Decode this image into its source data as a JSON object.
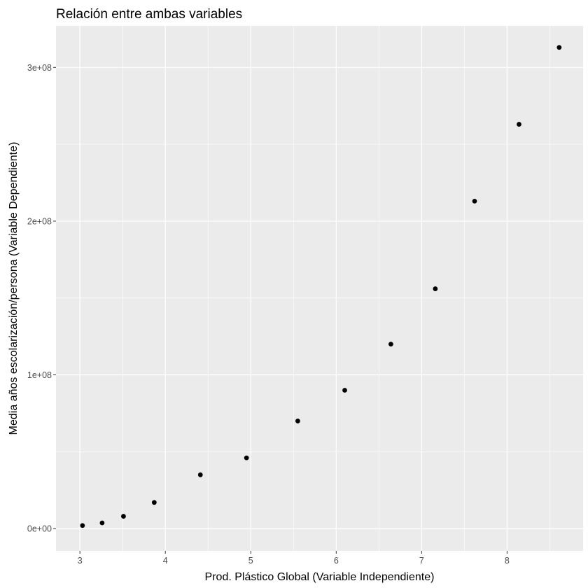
{
  "chart_data": {
    "type": "scatter",
    "title": "Relación entre ambas variables",
    "xlabel": "Prod. Plástico Global (Variable Independiente)",
    "ylabel": "Media años escolarización/persona (Variable Dependiente)",
    "xlim": [
      2.72,
      8.89
    ],
    "ylim": [
      -14500000,
      327000000
    ],
    "x_ticks": [
      3,
      4,
      5,
      6,
      7,
      8
    ],
    "x_tick_labels": [
      "3",
      "4",
      "5",
      "6",
      "7",
      "8"
    ],
    "y_ticks": [
      0,
      100000000,
      200000000,
      300000000
    ],
    "y_tick_labels": [
      "0e+00",
      "1e+08",
      "2e+08",
      "3e+08"
    ],
    "grid": true,
    "background_color": "#EBEBEB",
    "point_color": "#000000",
    "points": [
      {
        "x": 3.03,
        "y": 2000000
      },
      {
        "x": 3.26,
        "y": 3700000
      },
      {
        "x": 3.51,
        "y": 8000000
      },
      {
        "x": 3.87,
        "y": 17000000
      },
      {
        "x": 4.41,
        "y": 35000000
      },
      {
        "x": 4.95,
        "y": 46000000
      },
      {
        "x": 5.55,
        "y": 70000000
      },
      {
        "x": 6.1,
        "y": 90000000
      },
      {
        "x": 6.64,
        "y": 120000000
      },
      {
        "x": 7.16,
        "y": 156000000
      },
      {
        "x": 7.62,
        "y": 213000000
      },
      {
        "x": 8.14,
        "y": 263000000
      },
      {
        "x": 8.61,
        "y": 313000000
      }
    ]
  }
}
